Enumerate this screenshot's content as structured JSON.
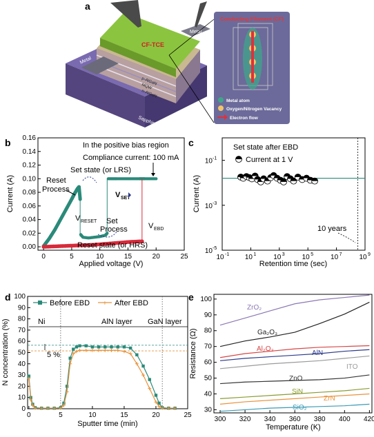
{
  "panel_a": {
    "label": "a",
    "layers": [
      "CF-TCE",
      "p-AlGaN",
      "p-AlGaN",
      "MQW",
      "n-AlGaN",
      "Sapphire substrate"
    ],
    "metal_left": "Metal",
    "metal_right": "Metal",
    "inset_title": "Conducting Filament (CF)",
    "legend": [
      "Metal atom",
      "Oxygen/Nitrogen Vacancy",
      "Electron flow"
    ],
    "colors": {
      "top": "#8bc43f",
      "substrate": "#5a4a8a",
      "inset_bg": "#6c6a9a",
      "metal_atom": "#3fa58a",
      "vacancy": "#f2c46a",
      "arrow": "#e0303a"
    }
  },
  "panel_b": {
    "label": "b",
    "xlabel": "Applied voltage (V)",
    "ylabel": "Current (A)",
    "xticks": [
      "0",
      "5",
      "10",
      "15",
      "20",
      "25"
    ],
    "yticks": [
      "0.00",
      "0.02",
      "0.04",
      "0.06",
      "0.08",
      "0.10",
      "0.12",
      "0.14",
      "0.16"
    ],
    "annotations": {
      "region": "In the positive bias region",
      "compliance": "Compliance current: 100 mA",
      "set_state": "Set state (or LRS)",
      "reset_process_1": "Reset",
      "reset_process_2": "Process",
      "vset": "V",
      "vset_sub": "SET",
      "vreset": "V",
      "vreset_sub": "RESET",
      "set_process_1": "Set",
      "set_process_2": "Process",
      "vebd": "V",
      "vebd_sub": "EBD",
      "reset_state": "Reset state (or HRS)"
    }
  },
  "panel_c": {
    "label": "c",
    "xlabel": "Retention time (sec)",
    "ylabel": "Current (A)",
    "xticks": [
      "10",
      "10",
      "10",
      "10",
      "10",
      "10"
    ],
    "xtick_exp": [
      "-1",
      "1",
      "3",
      "5",
      "7",
      "9"
    ],
    "yticks": [
      "10",
      "10",
      "10"
    ],
    "ytick_exp": [
      "-1",
      "-3",
      "-5"
    ],
    "legend_1": "Set state after EBD",
    "legend_2": "Current at 1 V",
    "annotation": "10 years"
  },
  "panel_d": {
    "label": "d",
    "xlabel": "Sputter time (min)",
    "ylabel": "N concentration (%)",
    "xticks": [
      "0",
      "5",
      "10",
      "15",
      "20",
      "25"
    ],
    "yticks": [
      "0",
      "10",
      "20",
      "30",
      "40",
      "50",
      "60",
      "70",
      "80",
      "90",
      "100"
    ],
    "legend_1": "Before EBD",
    "legend_2": "After EBD",
    "region_ni": "Ni",
    "region_aln": "AlN layer",
    "region_gan": "GaN layer",
    "delta": "5 %",
    "colors": {
      "before": "#2a8a7a",
      "after": "#e8923a"
    }
  },
  "panel_e": {
    "label": "e",
    "xlabel": "Temperature (K)",
    "ylabel": "Resistance (Ω)",
    "xticks": [
      "300",
      "320",
      "340",
      "360",
      "380",
      "400",
      "420"
    ],
    "yticks": [
      "30",
      "40",
      "50",
      "60",
      "70",
      "80",
      "90",
      "100"
    ],
    "labels": {
      "zro2": "ZrO₂",
      "ga2o3": "Ga₂O₃",
      "al2o3": "Al₂O₃",
      "aln": "AlN",
      "ito": "ITO",
      "zno": "ZnO",
      "sin": "SiN",
      "zrn": "ZrN",
      "sio2": "SiO₂"
    }
  },
  "chart_data": [
    {
      "type": "scatter",
      "panel": "b",
      "xlabel": "Applied voltage (V)",
      "ylabel": "Current (A)",
      "xlim": [
        -1,
        25
      ],
      "ylim": [
        -0.005,
        0.16
      ],
      "series": [
        {
          "x": [
            0,
            1,
            2,
            3,
            4,
            5,
            5.5,
            6,
            6.3,
            6.5
          ],
          "y": [
            0.001,
            0.012,
            0.025,
            0.04,
            0.055,
            0.07,
            0.078,
            0.085,
            0.088,
            0.07
          ]
        },
        {
          "x": [
            6.6,
            7,
            8,
            9,
            10,
            11,
            11.3
          ],
          "y": [
            0.018,
            0.014,
            0.013,
            0.014,
            0.015,
            0.017,
            0.02
          ]
        },
        {
          "x": [
            11.5,
            13,
            15,
            17,
            18,
            20
          ],
          "y": [
            0.1,
            0.1,
            0.1,
            0.1,
            0.1,
            0.1
          ]
        },
        {
          "x": [
            0,
            3,
            6,
            9,
            12,
            15,
            17.5
          ],
          "y": [
            0.0,
            0.001,
            0.002,
            0.003,
            0.005,
            0.007,
            0.008
          ]
        }
      ]
    },
    {
      "type": "scatter",
      "panel": "c",
      "xlabel": "Retention time (sec)",
      "ylabel": "Current (A)",
      "xscale": "log",
      "yscale": "log",
      "xlim": [
        0.1,
        1000000000
      ],
      "ylim": [
        1e-05,
        1
      ],
      "x": [
        2,
        3,
        5,
        8,
        12,
        20,
        30,
        50,
        80,
        150,
        250,
        400,
        700,
        1200,
        2000,
        3500,
        6000,
        10000,
        20000,
        40000,
        80000,
        150000,
        300000
      ],
      "y": [
        0.018,
        0.016,
        0.019,
        0.017,
        0.015,
        0.02,
        0.014,
        0.011,
        0.015,
        0.012,
        0.017,
        0.021,
        0.016,
        0.013,
        0.011,
        0.019,
        0.015,
        0.012,
        0.018,
        0.014,
        0.016,
        0.013,
        0.012
      ],
      "fit_y": 0.016
    },
    {
      "type": "line",
      "panel": "d",
      "xlabel": "Sputter time (min)",
      "ylabel": "N concentration (%)",
      "xlim": [
        0,
        25
      ],
      "ylim": [
        0,
        100
      ],
      "series": [
        {
          "name": "Before EBD",
          "x": [
            0,
            0.3,
            0.6,
            1,
            2,
            3,
            4,
            5,
            5.5,
            6,
            6.5,
            7,
            7.5,
            8,
            9,
            10,
            11,
            12,
            13,
            14,
            15,
            16,
            17,
            18,
            19,
            20,
            20.5,
            21,
            22,
            23
          ],
          "y": [
            29,
            10,
            4,
            1,
            0.5,
            0.5,
            0.5,
            1,
            5,
            20,
            45,
            53,
            55,
            56,
            56,
            55,
            55,
            55,
            55,
            55,
            55,
            54,
            48,
            38,
            26,
            12,
            5,
            1,
            0.5,
            0.5
          ]
        },
        {
          "name": "After EBD",
          "x": [
            0,
            0.3,
            0.6,
            1,
            2,
            3,
            4,
            5,
            5.5,
            6,
            6.5,
            7,
            7.5,
            8,
            9,
            10,
            11,
            12,
            13,
            14,
            15,
            16,
            17,
            18,
            19,
            20,
            20.5,
            21,
            22,
            23
          ],
          "y": [
            27,
            8,
            3,
            0.5,
            0.5,
            0.5,
            0.5,
            0.5,
            3,
            15,
            40,
            49,
            51,
            52,
            52,
            52,
            52,
            52,
            52,
            52,
            51,
            49,
            40,
            30,
            18,
            6,
            2,
            0.5,
            0.5,
            0.5
          ]
        }
      ],
      "reference_lines": [
        56.5,
        51.5
      ],
      "boundaries": [
        5,
        21
      ]
    },
    {
      "type": "line",
      "panel": "e",
      "xlabel": "Temperature (K)",
      "ylabel": "Resistance (Ω)",
      "xlim": [
        295,
        422
      ],
      "ylim": [
        28,
        103
      ],
      "x": [
        300,
        320,
        340,
        360,
        380,
        400,
        420
      ],
      "series": [
        {
          "name": "ZrO₂",
          "color": "#8a78b4",
          "values": [
            83.5,
            88,
            92.5,
            97,
            99.5,
            101,
            102.5
          ]
        },
        {
          "name": "Ga₂O₃",
          "color": "#222222",
          "values": [
            70,
            73.5,
            76,
            79,
            84.5,
            90.5,
            98
          ]
        },
        {
          "name": "Al₂O₃",
          "color": "#d64545",
          "values": [
            63,
            65.5,
            67,
            68.5,
            69.5,
            70,
            70.5
          ]
        },
        {
          "name": "AlN",
          "color": "#2c3a8a",
          "values": [
            61,
            62.5,
            63.5,
            64.5,
            65.5,
            67,
            68
          ]
        },
        {
          "name": "ITO",
          "color": "#9a9a9a",
          "values": [
            56,
            57.5,
            59,
            60,
            61,
            62.5,
            64
          ]
        },
        {
          "name": "ZnO",
          "color": "#333333",
          "values": [
            46.5,
            47.5,
            48,
            48.5,
            49,
            50,
            52
          ]
        },
        {
          "name": "SiN",
          "color": "#8a9a30",
          "values": [
            37,
            38,
            39,
            40,
            41,
            42,
            43.5
          ]
        },
        {
          "name": "ZrN",
          "color": "#e8923a",
          "values": [
            33.5,
            35,
            36,
            37,
            38,
            39,
            40
          ]
        },
        {
          "name": "SiO₂",
          "color": "#3a9ab4",
          "values": [
            29,
            30,
            31,
            31.5,
            32,
            32.5,
            33.5
          ]
        }
      ]
    }
  ]
}
